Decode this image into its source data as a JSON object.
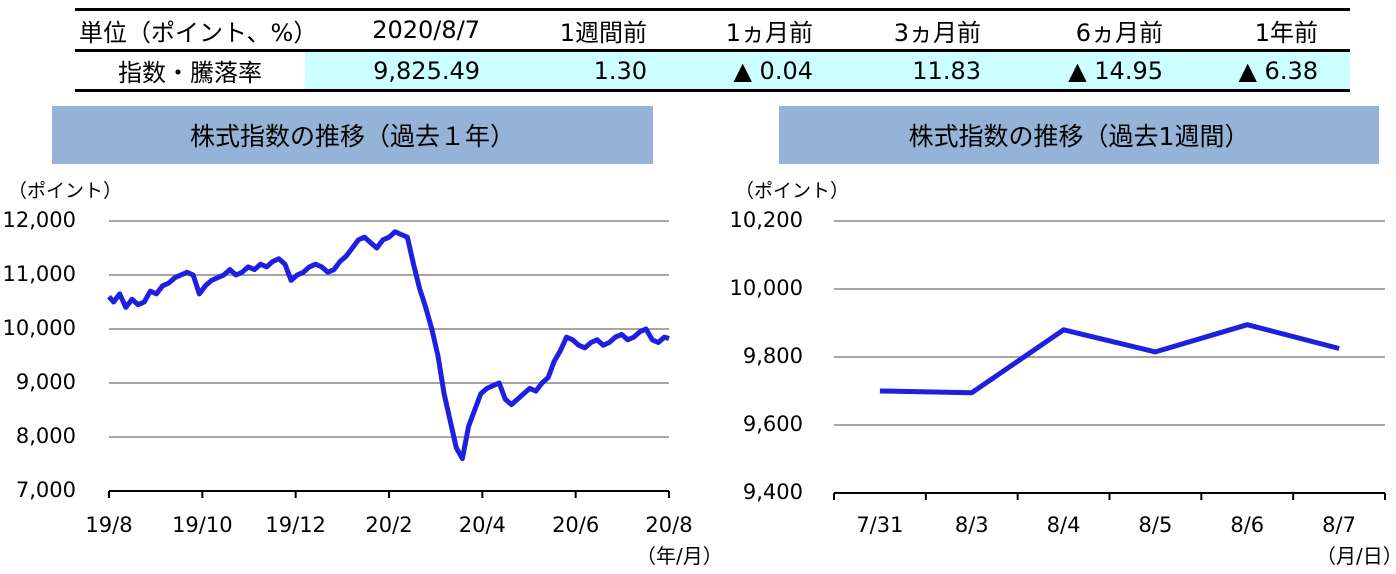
{
  "summary_table": {
    "headers": [
      "単位（ポイント、%）",
      "2020/8/7",
      "1週間前",
      "1ヵ月前",
      "3ヵ月前",
      "6ヵ月前",
      "1年前"
    ],
    "row_label": "指数・騰落率",
    "values": [
      "9,825.49",
      "1.30",
      "▲ 0.04",
      "11.83",
      "▲ 14.95",
      "▲ 6.38"
    ],
    "highlight_color": "#ccffff"
  },
  "colors": {
    "title_bar": "#95b3d7",
    "series_line": "#1f1fe0",
    "grid": "#a6a6a6"
  },
  "chart_data": [
    {
      "type": "line",
      "title": "株式指数の推移（過去１年）",
      "ylabel": "（ポイント）",
      "xunit": "（年/月）",
      "ylim": [
        7000,
        12000
      ],
      "yticks": [
        "7,000",
        "8,000",
        "9,000",
        "10,000",
        "11,000",
        "12,000"
      ],
      "ytick_values": [
        7000,
        8000,
        9000,
        10000,
        11000,
        12000
      ],
      "xticks": [
        "19/8",
        "19/10",
        "19/12",
        "20/2",
        "20/4",
        "20/6",
        "20/8"
      ],
      "series": [
        {
          "x": [
            "2019-08-07",
            "2019-08-10",
            "2019-08-14",
            "2019-08-18",
            "2019-08-22",
            "2019-08-26",
            "2019-08-30",
            "2019-09-03",
            "2019-09-07",
            "2019-09-11",
            "2019-09-15",
            "2019-09-19",
            "2019-09-23",
            "2019-09-27",
            "2019-10-01",
            "2019-10-05",
            "2019-10-09",
            "2019-10-13",
            "2019-10-17",
            "2019-10-21",
            "2019-10-25",
            "2019-10-29",
            "2019-11-02",
            "2019-11-06",
            "2019-11-10",
            "2019-11-14",
            "2019-11-18",
            "2019-11-22",
            "2019-11-26",
            "2019-11-30",
            "2019-12-04",
            "2019-12-08",
            "2019-12-12",
            "2019-12-16",
            "2019-12-20",
            "2019-12-24",
            "2019-12-28",
            "2020-01-01",
            "2020-01-05",
            "2020-01-09",
            "2020-01-13",
            "2020-01-17",
            "2020-01-21",
            "2020-01-25",
            "2020-01-29",
            "2020-02-02",
            "2020-02-06",
            "2020-02-10",
            "2020-02-14",
            "2020-02-18",
            "2020-02-22",
            "2020-02-26",
            "2020-03-01",
            "2020-03-05",
            "2020-03-09",
            "2020-03-13",
            "2020-03-17",
            "2020-03-21",
            "2020-03-25",
            "2020-03-29",
            "2020-04-02",
            "2020-04-06",
            "2020-04-10",
            "2020-04-14",
            "2020-04-18",
            "2020-04-22",
            "2020-04-26",
            "2020-04-30",
            "2020-05-04",
            "2020-05-08",
            "2020-05-12",
            "2020-05-16",
            "2020-05-20",
            "2020-05-24",
            "2020-05-28",
            "2020-06-01",
            "2020-06-05",
            "2020-06-09",
            "2020-06-13",
            "2020-06-17",
            "2020-06-21",
            "2020-06-25",
            "2020-06-29",
            "2020-07-03",
            "2020-07-07",
            "2020-07-11",
            "2020-07-15",
            "2020-07-19",
            "2020-07-23",
            "2020-07-27",
            "2020-07-31",
            "2020-08-04",
            "2020-08-07"
          ],
          "values": [
            10600,
            10500,
            10650,
            10400,
            10550,
            10450,
            10500,
            10700,
            10650,
            10800,
            10850,
            10950,
            11000,
            11050,
            11000,
            10650,
            10800,
            10900,
            10950,
            11000,
            11100,
            11000,
            11050,
            11150,
            11100,
            11200,
            11150,
            11250,
            11300,
            11200,
            10900,
            11000,
            11050,
            11150,
            11200,
            11150,
            11050,
            11100,
            11250,
            11350,
            11500,
            11650,
            11700,
            11600,
            11500,
            11650,
            11700,
            11800,
            11750,
            11700,
            11200,
            10750,
            10400,
            10000,
            9500,
            8800,
            8300,
            7800,
            7600,
            8200,
            8500,
            8800,
            8900,
            8950,
            9000,
            8700,
            8600,
            8700,
            8800,
            8900,
            8850,
            9000,
            9100,
            9400,
            9600,
            9850,
            9800,
            9700,
            9650,
            9750,
            9800,
            9700,
            9750,
            9850,
            9900,
            9800,
            9850,
            9950,
            10000,
            9800,
            9750,
            9850,
            9825
          ]
        }
      ]
    },
    {
      "type": "line",
      "title": "株式指数の推移（過去1週間）",
      "ylabel": "（ポイント）",
      "xunit": "（月/日）",
      "ylim": [
        9400,
        10200
      ],
      "yticks": [
        "9,400",
        "9,600",
        "9,800",
        "10,000",
        "10,200"
      ],
      "ytick_values": [
        9400,
        9600,
        9800,
        10000,
        10200
      ],
      "categories": [
        "7/31",
        "8/3",
        "8/4",
        "8/5",
        "8/6",
        "8/7"
      ],
      "series": [
        {
          "values": [
            9700,
            9695,
            9880,
            9815,
            9895,
            9825
          ]
        }
      ]
    }
  ]
}
